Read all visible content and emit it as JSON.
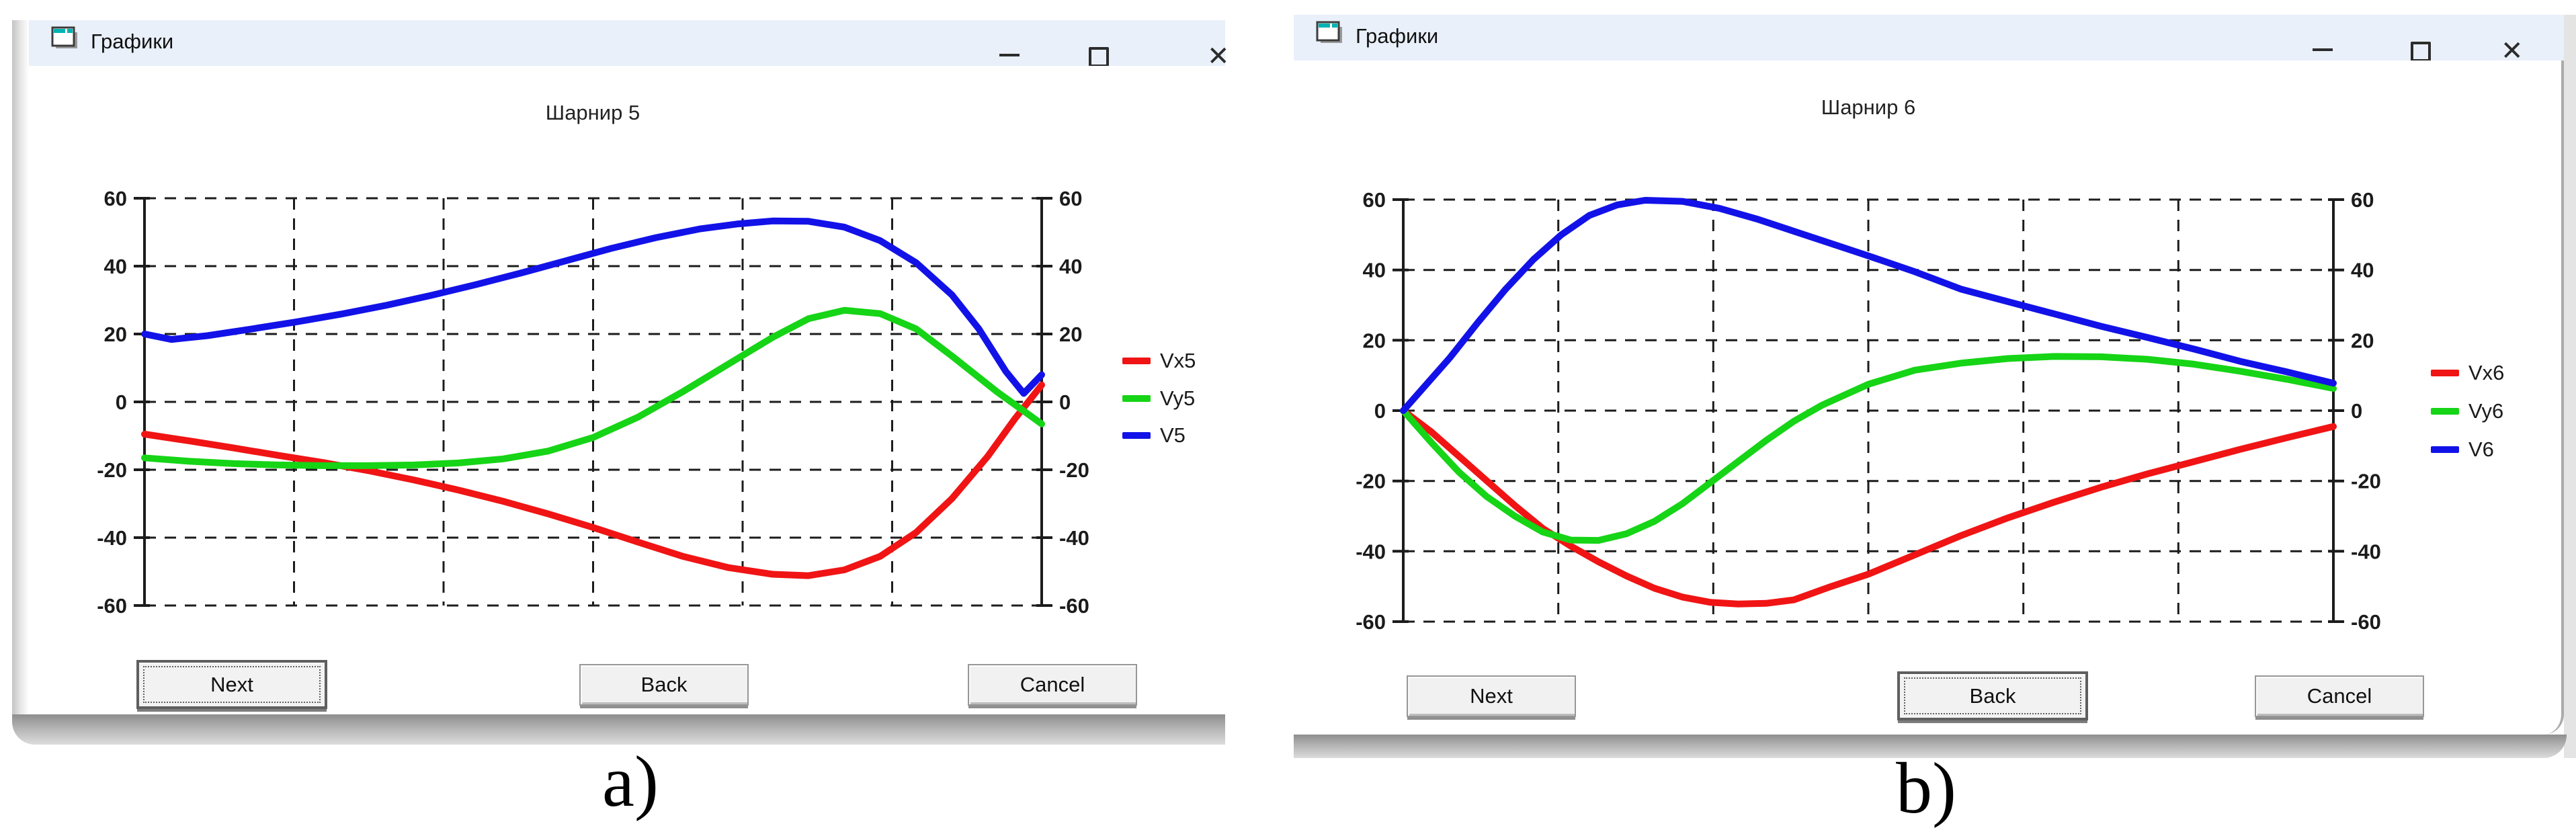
{
  "windows": [
    {
      "title": "Графики",
      "controls": {
        "minimize": "–",
        "maximize": "▢",
        "close": "✕"
      },
      "buttons": [
        {
          "label": "Next",
          "focused": true
        },
        {
          "label": "Back",
          "focused": false
        },
        {
          "label": "Cancel",
          "focused": false
        }
      ],
      "figure_label": "a)"
    },
    {
      "title": "Графики",
      "controls": {
        "minimize": "–",
        "maximize": "▢",
        "close": "✕"
      },
      "buttons": [
        {
          "label": "Next",
          "focused": false
        },
        {
          "label": "Back",
          "focused": true
        },
        {
          "label": "Cancel",
          "focused": false
        }
      ],
      "figure_label": "b)"
    }
  ],
  "chart_data": [
    {
      "type": "line",
      "title": "Шарнир 5",
      "xlabel": "",
      "ylabel": "",
      "ylim": [
        -60,
        60
      ],
      "yticks": [
        60,
        40,
        20,
        0,
        -20,
        -40,
        -60
      ],
      "x_intervals": 6,
      "grid": true,
      "grid_style": "dashed",
      "legend_position": "right",
      "axis_labels_both_sides": true,
      "series": [
        {
          "name": "Vx5",
          "color": "#f01414",
          "x": [
            0,
            0.05,
            0.1,
            0.15,
            0.2,
            0.25,
            0.3,
            0.35,
            0.4,
            0.45,
            0.5,
            0.55,
            0.6,
            0.65,
            0.7,
            0.74,
            0.78,
            0.82,
            0.86,
            0.9,
            0.94,
            0.97,
            1
          ],
          "values": [
            -9.5,
            -11.5,
            -13.6,
            -15.8,
            -17.9,
            -20.3,
            -23,
            -26,
            -29.3,
            -33,
            -37,
            -41.3,
            -45.5,
            -48.8,
            -50.8,
            -51.2,
            -49.5,
            -45.5,
            -38.5,
            -28.5,
            -16,
            -5,
            5
          ]
        },
        {
          "name": "Vy5",
          "color": "#16d416",
          "x": [
            0,
            0.05,
            0.1,
            0.15,
            0.2,
            0.25,
            0.3,
            0.35,
            0.4,
            0.45,
            0.5,
            0.55,
            0.6,
            0.65,
            0.7,
            0.74,
            0.78,
            0.82,
            0.86,
            0.9,
            0.95,
            1
          ],
          "values": [
            -16.5,
            -17.5,
            -18.2,
            -18.6,
            -18.8,
            -18.8,
            -18.6,
            -18,
            -16.8,
            -14.5,
            -10.5,
            -4.5,
            3,
            11,
            19,
            24.5,
            27,
            26,
            21.5,
            13.5,
            3,
            -6.5
          ]
        },
        {
          "name": "V5",
          "color": "#1212e8",
          "x": [
            0,
            0.03,
            0.07,
            0.12,
            0.17,
            0.22,
            0.27,
            0.32,
            0.37,
            0.42,
            0.47,
            0.52,
            0.57,
            0.62,
            0.66,
            0.7,
            0.74,
            0.78,
            0.82,
            0.86,
            0.9,
            0.93,
            0.96,
            0.98,
            1
          ],
          "values": [
            20,
            18.4,
            19.5,
            21.5,
            23.6,
            25.9,
            28.5,
            31.4,
            34.6,
            38,
            41.6,
            45.2,
            48.4,
            51,
            52.4,
            53.3,
            53.2,
            51.5,
            47.5,
            41,
            31.5,
            21.5,
            9,
            2.5,
            8
          ]
        }
      ]
    },
    {
      "type": "line",
      "title": "Шарнир 6",
      "xlabel": "",
      "ylabel": "",
      "ylim": [
        -60,
        60
      ],
      "yticks": [
        60,
        40,
        20,
        0,
        -20,
        -40,
        -60
      ],
      "x_intervals": 6,
      "grid": true,
      "grid_style": "dashed",
      "legend_position": "right",
      "axis_labels_both_sides": true,
      "series": [
        {
          "name": "Vx6",
          "color": "#f01414",
          "x": [
            0,
            0.03,
            0.06,
            0.09,
            0.12,
            0.15,
            0.18,
            0.21,
            0.24,
            0.27,
            0.3,
            0.33,
            0.36,
            0.39,
            0.42,
            0.46,
            0.5,
            0.55,
            0.6,
            0.65,
            0.7,
            0.75,
            0.8,
            0.85,
            0.9,
            0.95,
            1
          ],
          "values": [
            0,
            -6,
            -13,
            -20,
            -27,
            -33.5,
            -38.5,
            -43,
            -47,
            -50.5,
            -53,
            -54.5,
            -55,
            -54.8,
            -53.8,
            -50,
            -46.5,
            -41,
            -35.5,
            -30.5,
            -26,
            -21.8,
            -18,
            -14.5,
            -11,
            -7.7,
            -4.5
          ]
        },
        {
          "name": "Vy6",
          "color": "#16d416",
          "x": [
            0,
            0.03,
            0.06,
            0.09,
            0.12,
            0.15,
            0.18,
            0.21,
            0.24,
            0.27,
            0.3,
            0.33,
            0.36,
            0.39,
            0.42,
            0.45,
            0.5,
            0.55,
            0.6,
            0.65,
            0.7,
            0.75,
            0.8,
            0.85,
            0.9,
            0.95,
            1
          ],
          "values": [
            0,
            -9,
            -17.5,
            -24.5,
            -30,
            -34.5,
            -36.8,
            -36.9,
            -35,
            -31.5,
            -26.5,
            -20.5,
            -14.5,
            -8.5,
            -3,
            1.5,
            7.5,
            11.5,
            13.5,
            14.8,
            15.4,
            15.3,
            14.6,
            13.2,
            11.2,
            8.9,
            6.3
          ]
        },
        {
          "name": "V6",
          "color": "#1212e8",
          "x": [
            0,
            0.02,
            0.05,
            0.08,
            0.11,
            0.14,
            0.17,
            0.2,
            0.23,
            0.26,
            0.3,
            0.34,
            0.38,
            0.42,
            0.46,
            0.5,
            0.55,
            0.6,
            0.65,
            0.7,
            0.75,
            0.8,
            0.85,
            0.9,
            0.95,
            1
          ],
          "values": [
            0,
            6,
            15,
            25,
            34.5,
            43,
            50,
            55.5,
            58.5,
            59.8,
            59.5,
            57.5,
            54.5,
            51,
            47.5,
            44,
            39.5,
            34.5,
            31,
            27.5,
            24,
            20.8,
            17.5,
            14,
            11,
            7.8
          ]
        }
      ]
    }
  ]
}
